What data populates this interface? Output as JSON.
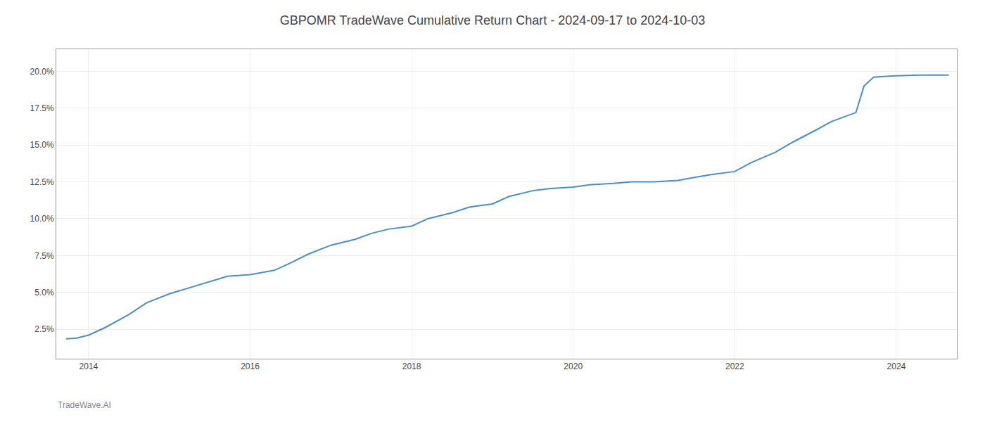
{
  "chart_data": {
    "type": "line",
    "title": "GBPOMR TradeWave Cumulative Return Chart - 2024-09-17 to 2024-10-03",
    "annotations": [
      "TradeWave.AI"
    ],
    "x": [
      2013.72,
      2013.85,
      2014.0,
      2014.2,
      2014.5,
      2014.72,
      2015.0,
      2015.3,
      2015.5,
      2015.72,
      2016.0,
      2016.3,
      2016.5,
      2016.72,
      2017.0,
      2017.3,
      2017.5,
      2017.72,
      2018.0,
      2018.2,
      2018.5,
      2018.72,
      2019.0,
      2019.2,
      2019.5,
      2019.72,
      2020.0,
      2020.2,
      2020.5,
      2020.72,
      2021.0,
      2021.3,
      2021.5,
      2021.72,
      2022.0,
      2022.2,
      2022.5,
      2022.72,
      2023.0,
      2023.2,
      2023.5,
      2023.6,
      2023.72,
      2024.0,
      2024.3,
      2024.65
    ],
    "values": [
      1.85,
      1.9,
      2.1,
      2.6,
      3.5,
      4.3,
      4.9,
      5.4,
      5.7,
      6.1,
      6.2,
      6.5,
      7.0,
      7.6,
      8.2,
      8.6,
      9.0,
      9.3,
      9.5,
      10.0,
      10.4,
      10.8,
      11.0,
      11.5,
      11.9,
      12.05,
      12.15,
      12.3,
      12.4,
      12.5,
      12.5,
      12.6,
      12.8,
      13.0,
      13.2,
      13.8,
      14.5,
      15.2,
      16.0,
      16.6,
      17.2,
      19.0,
      19.6,
      19.7,
      19.75,
      19.75
    ],
    "color": "#4a90c4",
    "xlim": [
      2013.6,
      2024.75
    ],
    "ylim": [
      0.5,
      21.5
    ],
    "xticks": [
      2014,
      2016,
      2018,
      2020,
      2022,
      2024
    ],
    "yticks": [
      {
        "value": 2.5,
        "label": "2.5%"
      },
      {
        "value": 5.0,
        "label": "5.0%"
      },
      {
        "value": 7.5,
        "label": "7.5%"
      },
      {
        "value": 10.0,
        "label": "10.0%"
      },
      {
        "value": 12.5,
        "label": "12.5%"
      },
      {
        "value": 15.0,
        "label": "15.0%"
      },
      {
        "value": 17.5,
        "label": "17.5%"
      },
      {
        "value": 20.0,
        "label": "20.0%"
      }
    ],
    "grid": true
  }
}
